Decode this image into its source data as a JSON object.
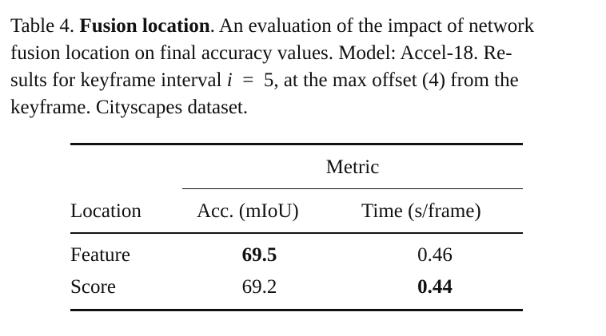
{
  "caption": {
    "label": "Table 4.",
    "title": "Fusion location",
    "line1_rest": ". An evaluation of the impact of network",
    "line2": "fusion location on final accuracy values. Model: Accel-18. Re-",
    "line3_pre": "sults for keyframe interval",
    "line3_var": "i",
    "line3_eq": "=",
    "line3_post": "5, at the max offset (4) from the",
    "line4": "keyframe. Cityscapes dataset."
  },
  "table": {
    "group_header": "Metric",
    "headers": {
      "location": "Location",
      "accuracy": "Acc. (mIoU)",
      "time": "Time (s/frame)"
    },
    "rows": [
      {
        "location": "Feature",
        "accuracy": "69.5",
        "time": "0.46",
        "accuracy_bold": true,
        "time_bold": false
      },
      {
        "location": "Score",
        "accuracy": "69.2",
        "time": "0.44",
        "accuracy_bold": false,
        "time_bold": true
      }
    ]
  }
}
